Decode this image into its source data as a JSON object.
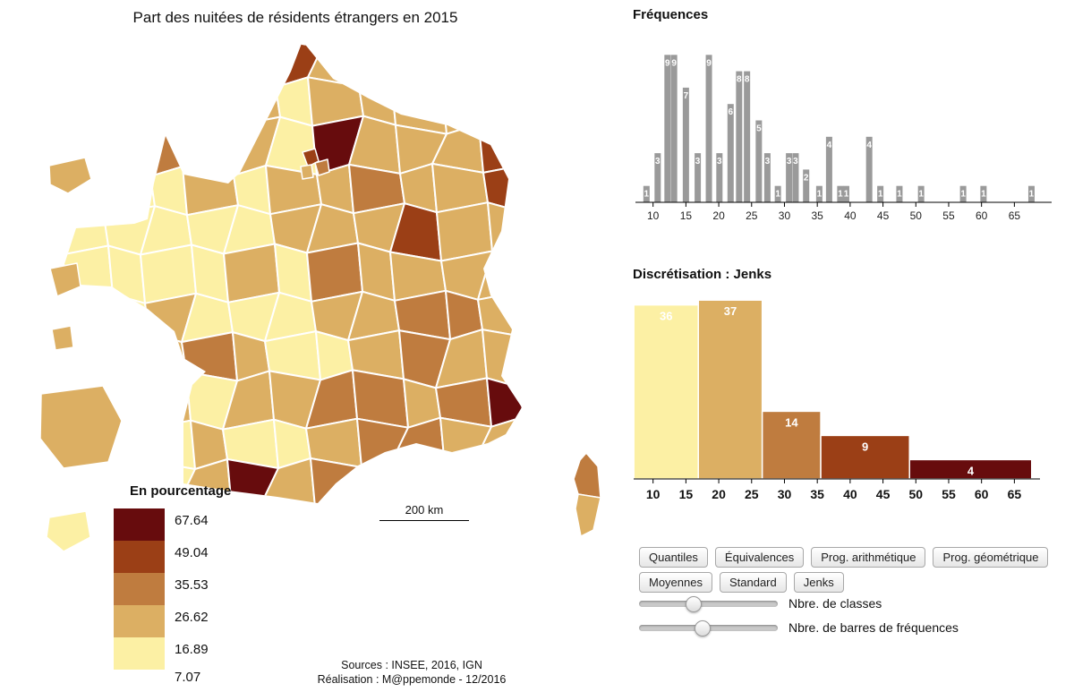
{
  "map": {
    "title": "Part des nuitées de résidents étrangers en 2015",
    "legend": {
      "title": "En pourcentage",
      "breaks": [
        "67.64",
        "49.04",
        "35.53",
        "26.62",
        "16.89",
        "7.07"
      ]
    },
    "scalebar_label": "200 km",
    "sources": [
      "Sources : INSEE, 2016, IGN",
      "Réalisation : M@ppemonde - 12/2016"
    ],
    "palette": [
      "#fcf0a4",
      "#dcaf63",
      "#bf7c3f",
      "#9b3f16",
      "#670c0d"
    ],
    "grid_rows": [
      "11111311111",
      "11111011111",
      "11221041113",
      "10010112113",
      "00000111311",
      "00001021111",
      "00100011221",
      "01121001211",
      "01101122124",
      "00010012211",
      "00014121111"
    ],
    "territories": [
      {
        "name": "dom-1",
        "class": 1
      },
      {
        "name": "dom-2",
        "class": 1
      },
      {
        "name": "dom-3",
        "class": 1
      },
      {
        "name": "guyane",
        "class": 1
      },
      {
        "name": "dom-5",
        "class": 0
      },
      {
        "name": "corse-nord",
        "class": 2
      },
      {
        "name": "corse-sud",
        "class": 1
      },
      {
        "name": "paris-mini-1",
        "class": 3
      },
      {
        "name": "paris-mini-2",
        "class": 2
      },
      {
        "name": "paris-mini-3",
        "class": 1
      }
    ]
  },
  "chart_data": [
    {
      "type": "bar",
      "title": "Fréquences",
      "bar_color": "#9a9a9a",
      "ylim": [
        0,
        9
      ],
      "xlim": [
        8,
        70
      ],
      "xticks": [
        10,
        15,
        20,
        25,
        30,
        35,
        40,
        45,
        50,
        55,
        60,
        65
      ],
      "bars": [
        {
          "x": 9.0,
          "v": 1
        },
        {
          "x": 10.7,
          "v": 3
        },
        {
          "x": 12.2,
          "v": 9
        },
        {
          "x": 13.2,
          "v": 9
        },
        {
          "x": 15.0,
          "v": 7
        },
        {
          "x": 16.8,
          "v": 3
        },
        {
          "x": 18.5,
          "v": 9
        },
        {
          "x": 20.1,
          "v": 3
        },
        {
          "x": 21.8,
          "v": 6
        },
        {
          "x": 23.1,
          "v": 8
        },
        {
          "x": 24.3,
          "v": 8
        },
        {
          "x": 26.1,
          "v": 5
        },
        {
          "x": 27.4,
          "v": 3
        },
        {
          "x": 29.0,
          "v": 1
        },
        {
          "x": 30.7,
          "v": 3
        },
        {
          "x": 31.7,
          "v": 3
        },
        {
          "x": 33.3,
          "v": 2
        },
        {
          "x": 35.3,
          "v": 1
        },
        {
          "x": 36.8,
          "v": 4
        },
        {
          "x": 38.5,
          "v": 1
        },
        {
          "x": 39.4,
          "v": 1
        },
        {
          "x": 42.9,
          "v": 4
        },
        {
          "x": 44.6,
          "v": 1
        },
        {
          "x": 47.5,
          "v": 1
        },
        {
          "x": 50.8,
          "v": 1
        },
        {
          "x": 57.2,
          "v": 1
        },
        {
          "x": 60.3,
          "v": 1
        },
        {
          "x": 67.6,
          "v": 1
        }
      ]
    },
    {
      "type": "bar",
      "title": "Discrétisation : Jenks",
      "xticks": [
        10,
        15,
        20,
        25,
        30,
        35,
        40,
        45,
        50,
        55,
        60,
        65
      ],
      "classes": [
        {
          "from": 7.07,
          "to": 16.89,
          "count": 36,
          "color": 0
        },
        {
          "from": 16.89,
          "to": 26.62,
          "count": 37,
          "color": 1
        },
        {
          "from": 26.62,
          "to": 35.53,
          "count": 14,
          "color": 2
        },
        {
          "from": 35.53,
          "to": 49.04,
          "count": 9,
          "color": 3
        },
        {
          "from": 49.04,
          "to": 67.64,
          "count": 4,
          "color": 4
        }
      ]
    }
  ],
  "controls": {
    "buttons": [
      "Quantiles",
      "Équivalences",
      "Prog. arithmétique",
      "Prog. géométrique",
      "Moyennes",
      "Standard",
      "Jenks"
    ],
    "slider1_label": "Nbre. de classes",
    "slider2_label": "Nbre. de barres de fréquences",
    "slider1_pos": 0.39,
    "slider2_pos": 0.45
  }
}
